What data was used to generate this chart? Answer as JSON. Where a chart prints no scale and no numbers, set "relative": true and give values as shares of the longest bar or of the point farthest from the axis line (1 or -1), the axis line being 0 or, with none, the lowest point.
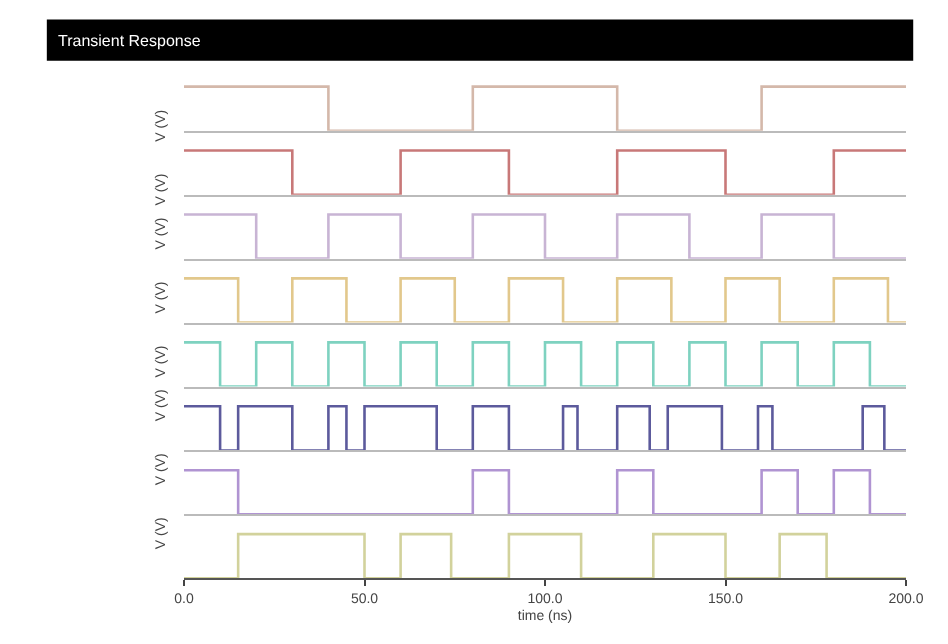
{
  "chart_data": [
    {
      "type": "line",
      "title": "Transient Response",
      "relative": true,
      "ylabel": "V (V)",
      "xlim": [
        0,
        200
      ],
      "tick_labels": false,
      "color": "#d4b8aa",
      "x": [
        0,
        40,
        40,
        80,
        80,
        120,
        120,
        160,
        160,
        200
      ],
      "values": [
        1,
        1,
        0,
        0,
        1,
        1,
        0,
        0,
        1,
        1
      ]
    },
    {
      "type": "line",
      "relative": true,
      "ylabel": "V (V)",
      "xlim": [
        0,
        200
      ],
      "tick_labels": false,
      "color": "#c87878",
      "x": [
        0,
        30,
        30,
        60,
        60,
        90,
        90,
        120,
        120,
        150,
        150,
        180,
        180,
        200
      ],
      "values": [
        1,
        1,
        0,
        0,
        1,
        1,
        0,
        0,
        1,
        1,
        0,
        0,
        1,
        1
      ]
    },
    {
      "type": "line",
      "relative": true,
      "ylabel": "V (V)",
      "xlim": [
        0,
        200
      ],
      "tick_labels": false,
      "color": "#c8b4d4",
      "x": [
        0,
        20,
        20,
        40,
        40,
        60,
        60,
        80,
        80,
        100,
        100,
        120,
        120,
        140,
        140,
        160,
        160,
        180,
        180,
        200
      ],
      "values": [
        1,
        1,
        0,
        0,
        1,
        1,
        0,
        0,
        1,
        1,
        0,
        0,
        1,
        1,
        0,
        0,
        1,
        1,
        0,
        0
      ]
    },
    {
      "type": "line",
      "relative": true,
      "ylabel": "V (V)",
      "xlim": [
        0,
        200
      ],
      "tick_labels": false,
      "color": "#e2c88c",
      "x": [
        0,
        15,
        15,
        30,
        30,
        45,
        45,
        60,
        60,
        75,
        75,
        90,
        90,
        105,
        105,
        120,
        120,
        135,
        135,
        150,
        150,
        165,
        165,
        180,
        180,
        195,
        195,
        200
      ],
      "values": [
        1,
        1,
        0,
        0,
        1,
        1,
        0,
        0,
        1,
        1,
        0,
        0,
        1,
        1,
        0,
        0,
        1,
        1,
        0,
        0,
        1,
        1,
        0,
        0,
        1,
        1,
        0,
        0
      ]
    },
    {
      "type": "line",
      "relative": true,
      "ylabel": "V (V)",
      "xlim": [
        0,
        200
      ],
      "tick_labels": false,
      "color": "#7ed2c0",
      "x": [
        0,
        10,
        10,
        20,
        20,
        30,
        30,
        40,
        40,
        50,
        50,
        60,
        60,
        70,
        70,
        80,
        80,
        90,
        90,
        100,
        100,
        110,
        110,
        120,
        120,
        130,
        130,
        140,
        140,
        150,
        150,
        160,
        160,
        170,
        170,
        180,
        180,
        190,
        190,
        200
      ],
      "values": [
        1,
        1,
        0,
        0,
        1,
        1,
        0,
        0,
        1,
        1,
        0,
        0,
        1,
        1,
        0,
        0,
        1,
        1,
        0,
        0,
        1,
        1,
        0,
        0,
        1,
        1,
        0,
        0,
        1,
        1,
        0,
        0,
        1,
        1,
        0,
        0,
        1,
        1,
        0,
        0
      ]
    },
    {
      "type": "line",
      "relative": true,
      "ylabel": "V (V)",
      "xlim": [
        0,
        200
      ],
      "tick_labels": false,
      "color": "#5c5a9c",
      "x": [
        0,
        10,
        10,
        15,
        15,
        30,
        30,
        40,
        40,
        45,
        45,
        50,
        50,
        70,
        70,
        80,
        80,
        90,
        90,
        105,
        105,
        109,
        109,
        120,
        120,
        129,
        129,
        134,
        134,
        149,
        149,
        159,
        159,
        163,
        163,
        188,
        188,
        194,
        194,
        200
      ],
      "values": [
        1,
        1,
        0,
        0,
        1,
        1,
        0,
        0,
        1,
        1,
        0,
        0,
        1,
        1,
        0,
        0,
        1,
        1,
        0,
        0,
        1,
        1,
        0,
        0,
        1,
        1,
        0,
        0,
        1,
        1,
        0,
        0,
        1,
        1,
        0,
        0,
        1,
        1,
        0,
        0
      ]
    },
    {
      "type": "line",
      "relative": true,
      "ylabel": "V (V)",
      "xlim": [
        0,
        200
      ],
      "tick_labels": false,
      "color": "#b094d2",
      "x": [
        0,
        15,
        15,
        80,
        80,
        90,
        90,
        120,
        120,
        130,
        130,
        160,
        160,
        170,
        170,
        180,
        180,
        190,
        190,
        200
      ],
      "values": [
        1,
        1,
        0,
        0,
        1,
        1,
        0,
        0,
        1,
        1,
        0,
        0,
        1,
        1,
        0,
        0,
        1,
        1,
        0,
        0
      ]
    },
    {
      "type": "line",
      "relative": true,
      "ylabel": "V (V)",
      "xlabel": "time (ns)",
      "xlim": [
        0,
        200
      ],
      "xticks": [
        {
          "value": 0,
          "label": "0.0"
        },
        {
          "value": 50,
          "label": "50.0"
        },
        {
          "value": 100,
          "label": "100.0"
        },
        {
          "value": 150,
          "label": "150.0"
        },
        {
          "value": 200,
          "label": "200.0"
        }
      ],
      "tick_labels": "x",
      "color": "#d2d29c",
      "x": [
        0,
        15,
        15,
        50,
        50,
        60,
        60,
        74,
        74,
        90,
        90,
        110,
        110,
        130,
        130,
        150,
        150,
        165,
        165,
        178,
        178,
        200
      ],
      "values": [
        0,
        0,
        1,
        1,
        0,
        0,
        1,
        1,
        0,
        0,
        1,
        1,
        0,
        0,
        1,
        1,
        0,
        0,
        1,
        1,
        0,
        0
      ]
    }
  ]
}
